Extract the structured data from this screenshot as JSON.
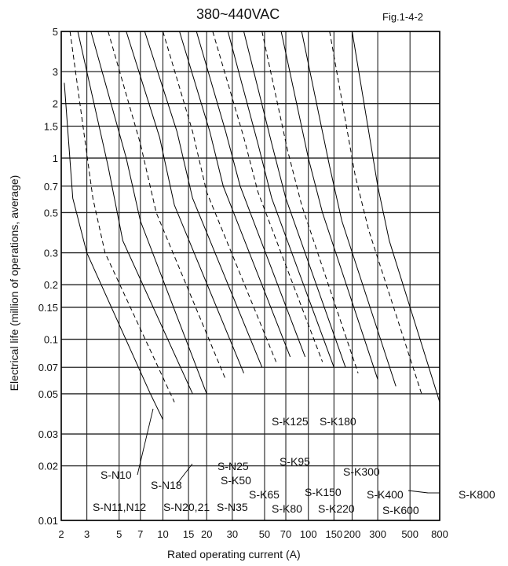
{
  "chart_data": {
    "type": "line",
    "title": "380~440VAC",
    "figure_ref": "Fig.1-4-2",
    "xlabel": "Rated operating current (A)",
    "ylabel": "Electrical life (million of operations, average)",
    "x_scale": "log",
    "y_scale": "log",
    "xlim": [
      2,
      800
    ],
    "ylim": [
      0.01,
      5
    ],
    "x_ticks": [
      2,
      3,
      5,
      7,
      10,
      15,
      20,
      30,
      50,
      70,
      100,
      150,
      200,
      300,
      500,
      800
    ],
    "x_tick_labels": [
      "2",
      "3",
      "5",
      "7",
      "10",
      "15",
      "20",
      "30",
      "50",
      "70",
      "100",
      "150",
      "200",
      "300",
      "500",
      "800"
    ],
    "y_ticks": [
      0.01,
      0.02,
      0.03,
      0.05,
      0.07,
      0.1,
      0.15,
      0.2,
      0.3,
      0.5,
      0.7,
      1,
      1.5,
      2,
      3,
      5
    ],
    "y_tick_labels": [
      "0.01",
      "0.02",
      "0.03",
      "0.05",
      "0.07",
      "0.1",
      "0.15",
      "0.2",
      "0.3",
      "0.5",
      "0.7",
      "1",
      "1.5",
      "2",
      "3",
      "5"
    ],
    "grid": true,
    "series": [
      {
        "name": "S-N10",
        "points": [
          [
            2.1,
            2.6
          ],
          [
            2.4,
            0.6
          ],
          [
            3.0,
            0.3
          ],
          [
            8.2,
            0.05
          ],
          [
            10,
            0.036
          ]
        ]
      },
      {
        "name": "S-N11,N12",
        "points": [
          [
            2.3,
            5.0
          ],
          [
            3.3,
            0.6
          ],
          [
            4.0,
            0.3
          ],
          [
            12,
            0.045
          ]
        ]
      },
      {
        "name": "S-N18",
        "points": [
          [
            2.6,
            5.0
          ],
          [
            4.2,
            0.9
          ],
          [
            5.3,
            0.35
          ],
          [
            16,
            0.05
          ]
        ]
      },
      {
        "name": "S-N20,21",
        "points": [
          [
            3.2,
            5.0
          ],
          [
            5.6,
            1.0
          ],
          [
            7.0,
            0.45
          ],
          [
            20,
            0.05
          ]
        ]
      },
      {
        "name": "S-N25",
        "points": [
          [
            4.2,
            5.0
          ],
          [
            7.0,
            1.2
          ],
          [
            9.0,
            0.5
          ],
          [
            27,
            0.06
          ]
        ]
      },
      {
        "name": "S-N35",
        "points": [
          [
            5.6,
            5.0
          ],
          [
            9.5,
            1.3
          ],
          [
            12,
            0.55
          ],
          [
            36,
            0.065
          ]
        ]
      },
      {
        "name": "S-K50",
        "points": [
          [
            7.5,
            5.0
          ],
          [
            12.5,
            1.4
          ],
          [
            16,
            0.6
          ],
          [
            48,
            0.07
          ]
        ]
      },
      {
        "name": "S-K65",
        "points": [
          [
            10,
            5.0
          ],
          [
            16,
            1.4
          ],
          [
            20,
            0.65
          ],
          [
            60,
            0.075
          ]
        ]
      },
      {
        "name": "S-K80",
        "points": [
          [
            13,
            5.0
          ],
          [
            21,
            1.4
          ],
          [
            26,
            0.7
          ],
          [
            75,
            0.08
          ]
        ]
      },
      {
        "name": "S-K95",
        "points": [
          [
            17,
            5.0
          ],
          [
            27,
            1.4
          ],
          [
            34,
            0.7
          ],
          [
            95,
            0.08
          ]
        ]
      },
      {
        "name": "S-K125",
        "points": [
          [
            22,
            5.0
          ],
          [
            36,
            1.3
          ],
          [
            45,
            0.65
          ],
          [
            125,
            0.075
          ]
        ]
      },
      {
        "name": "S-K150",
        "points": [
          [
            28,
            5.0
          ],
          [
            45,
            1.2
          ],
          [
            56,
            0.6
          ],
          [
            150,
            0.07
          ]
        ]
      },
      {
        "name": "S-K180",
        "points": [
          [
            36,
            5.0
          ],
          [
            56,
            1.2
          ],
          [
            70,
            0.6
          ],
          [
            180,
            0.07
          ]
        ]
      },
      {
        "name": "S-K220",
        "points": [
          [
            48,
            5.0
          ],
          [
            72,
            1.1
          ],
          [
            90,
            0.55
          ],
          [
            220,
            0.065
          ]
        ]
      },
      {
        "name": "S-K300",
        "points": [
          [
            65,
            5.0
          ],
          [
            100,
            1.0
          ],
          [
            125,
            0.5
          ],
          [
            300,
            0.06
          ]
        ]
      },
      {
        "name": "S-K400",
        "points": [
          [
            90,
            5.0
          ],
          [
            140,
            0.9
          ],
          [
            170,
            0.45
          ],
          [
            400,
            0.055
          ]
        ]
      },
      {
        "name": "S-K600",
        "points": [
          [
            140,
            5.0
          ],
          [
            210,
            0.8
          ],
          [
            260,
            0.4
          ],
          [
            600,
            0.05
          ]
        ]
      },
      {
        "name": "S-K800",
        "points": [
          [
            200,
            5.0
          ],
          [
            300,
            0.7
          ],
          [
            360,
            0.35
          ],
          [
            800,
            0.045
          ]
        ]
      }
    ],
    "series_labels": [
      "S-N10",
      "S-N11,N12",
      "S-N18",
      "S-N20,21",
      "S-N25",
      "S-N35",
      "S-K50",
      "S-K65",
      "S-K80",
      "S-K95",
      "S-K125",
      "S-K150",
      "S-K180",
      "S-K220",
      "S-K300",
      "S-K400",
      "S-K600",
      "S-K800"
    ]
  }
}
